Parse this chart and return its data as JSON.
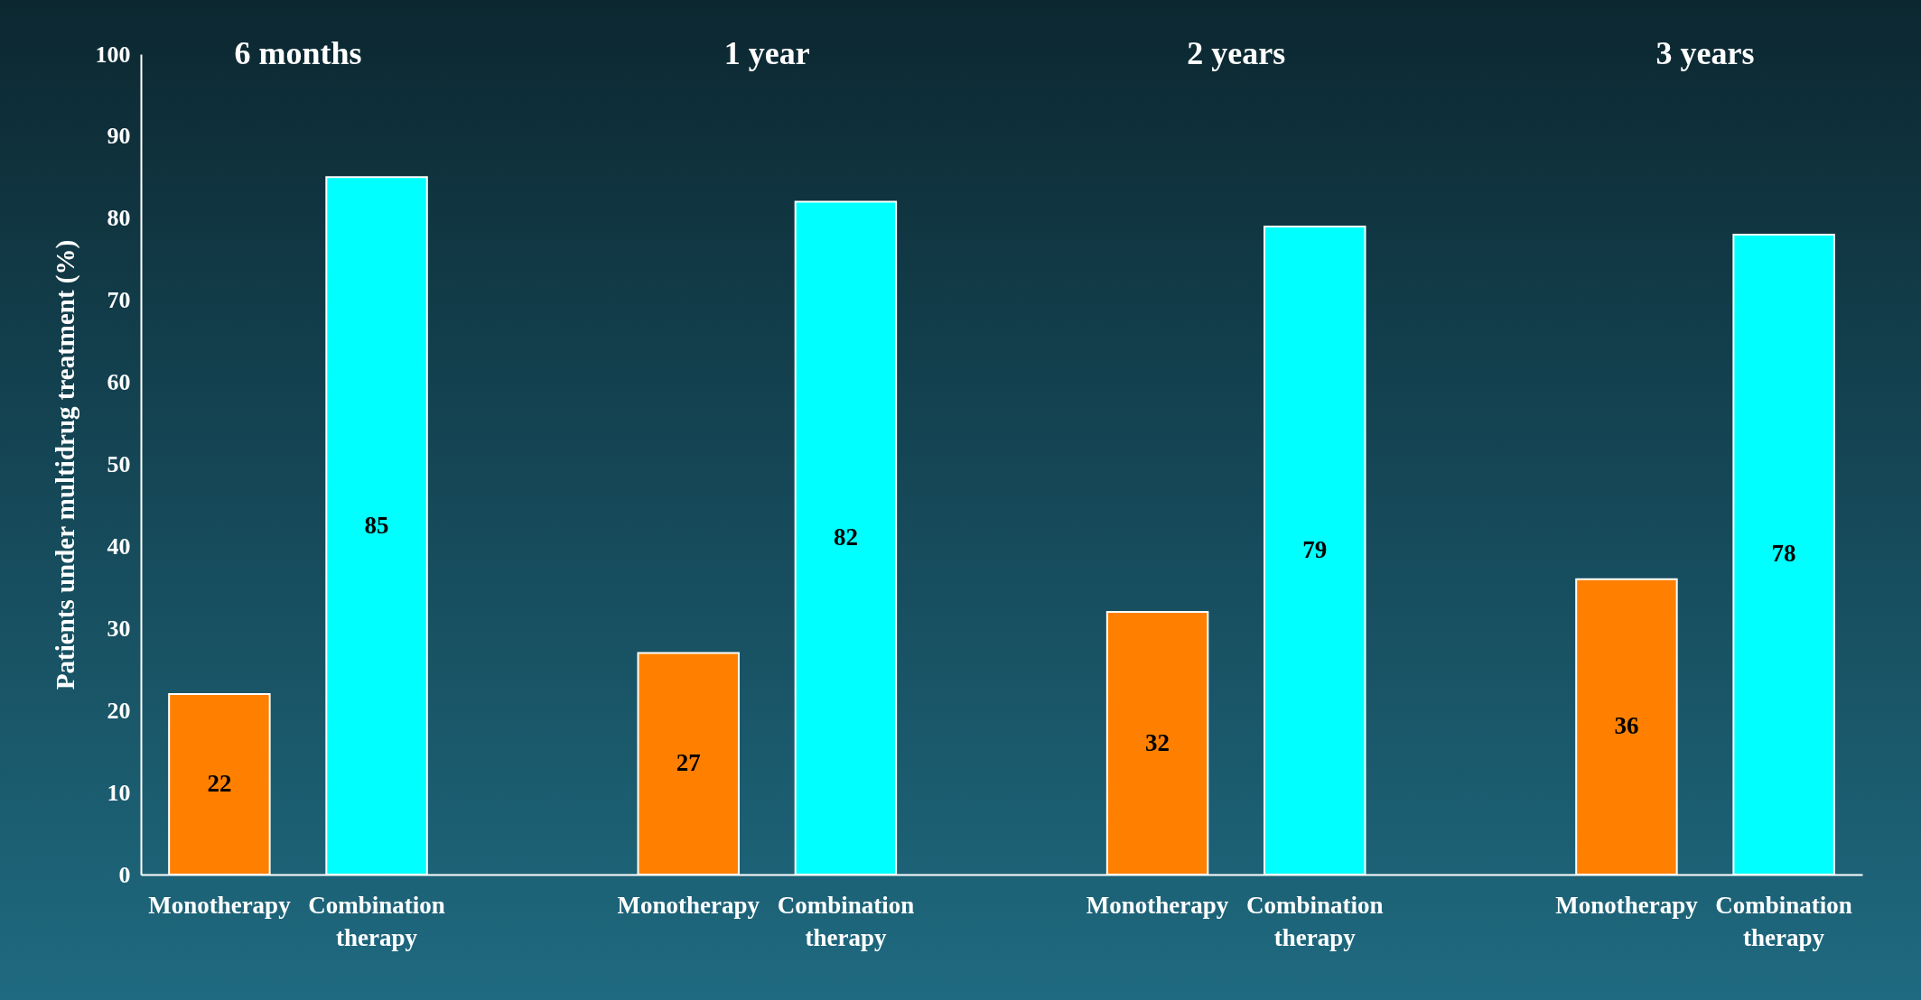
{
  "chart_data": {
    "type": "bar",
    "ylabel": "Patients under multidrug treatment (%)",
    "categories": [
      "6 months",
      "1 year",
      "2 years",
      "3 years"
    ],
    "series": [
      {
        "name": "Monotherapy",
        "color": "#ff8000",
        "values": [
          22,
          27,
          32,
          36
        ]
      },
      {
        "name": "Combination therapy",
        "color": "#00ffff",
        "values": [
          85,
          82,
          79,
          78
        ]
      }
    ],
    "ylim": [
      0,
      100
    ],
    "yticks": [
      0,
      10,
      20,
      30,
      40,
      50,
      60,
      70,
      80,
      90,
      100
    ],
    "data_labels": true,
    "grid": false,
    "legend": false
  }
}
